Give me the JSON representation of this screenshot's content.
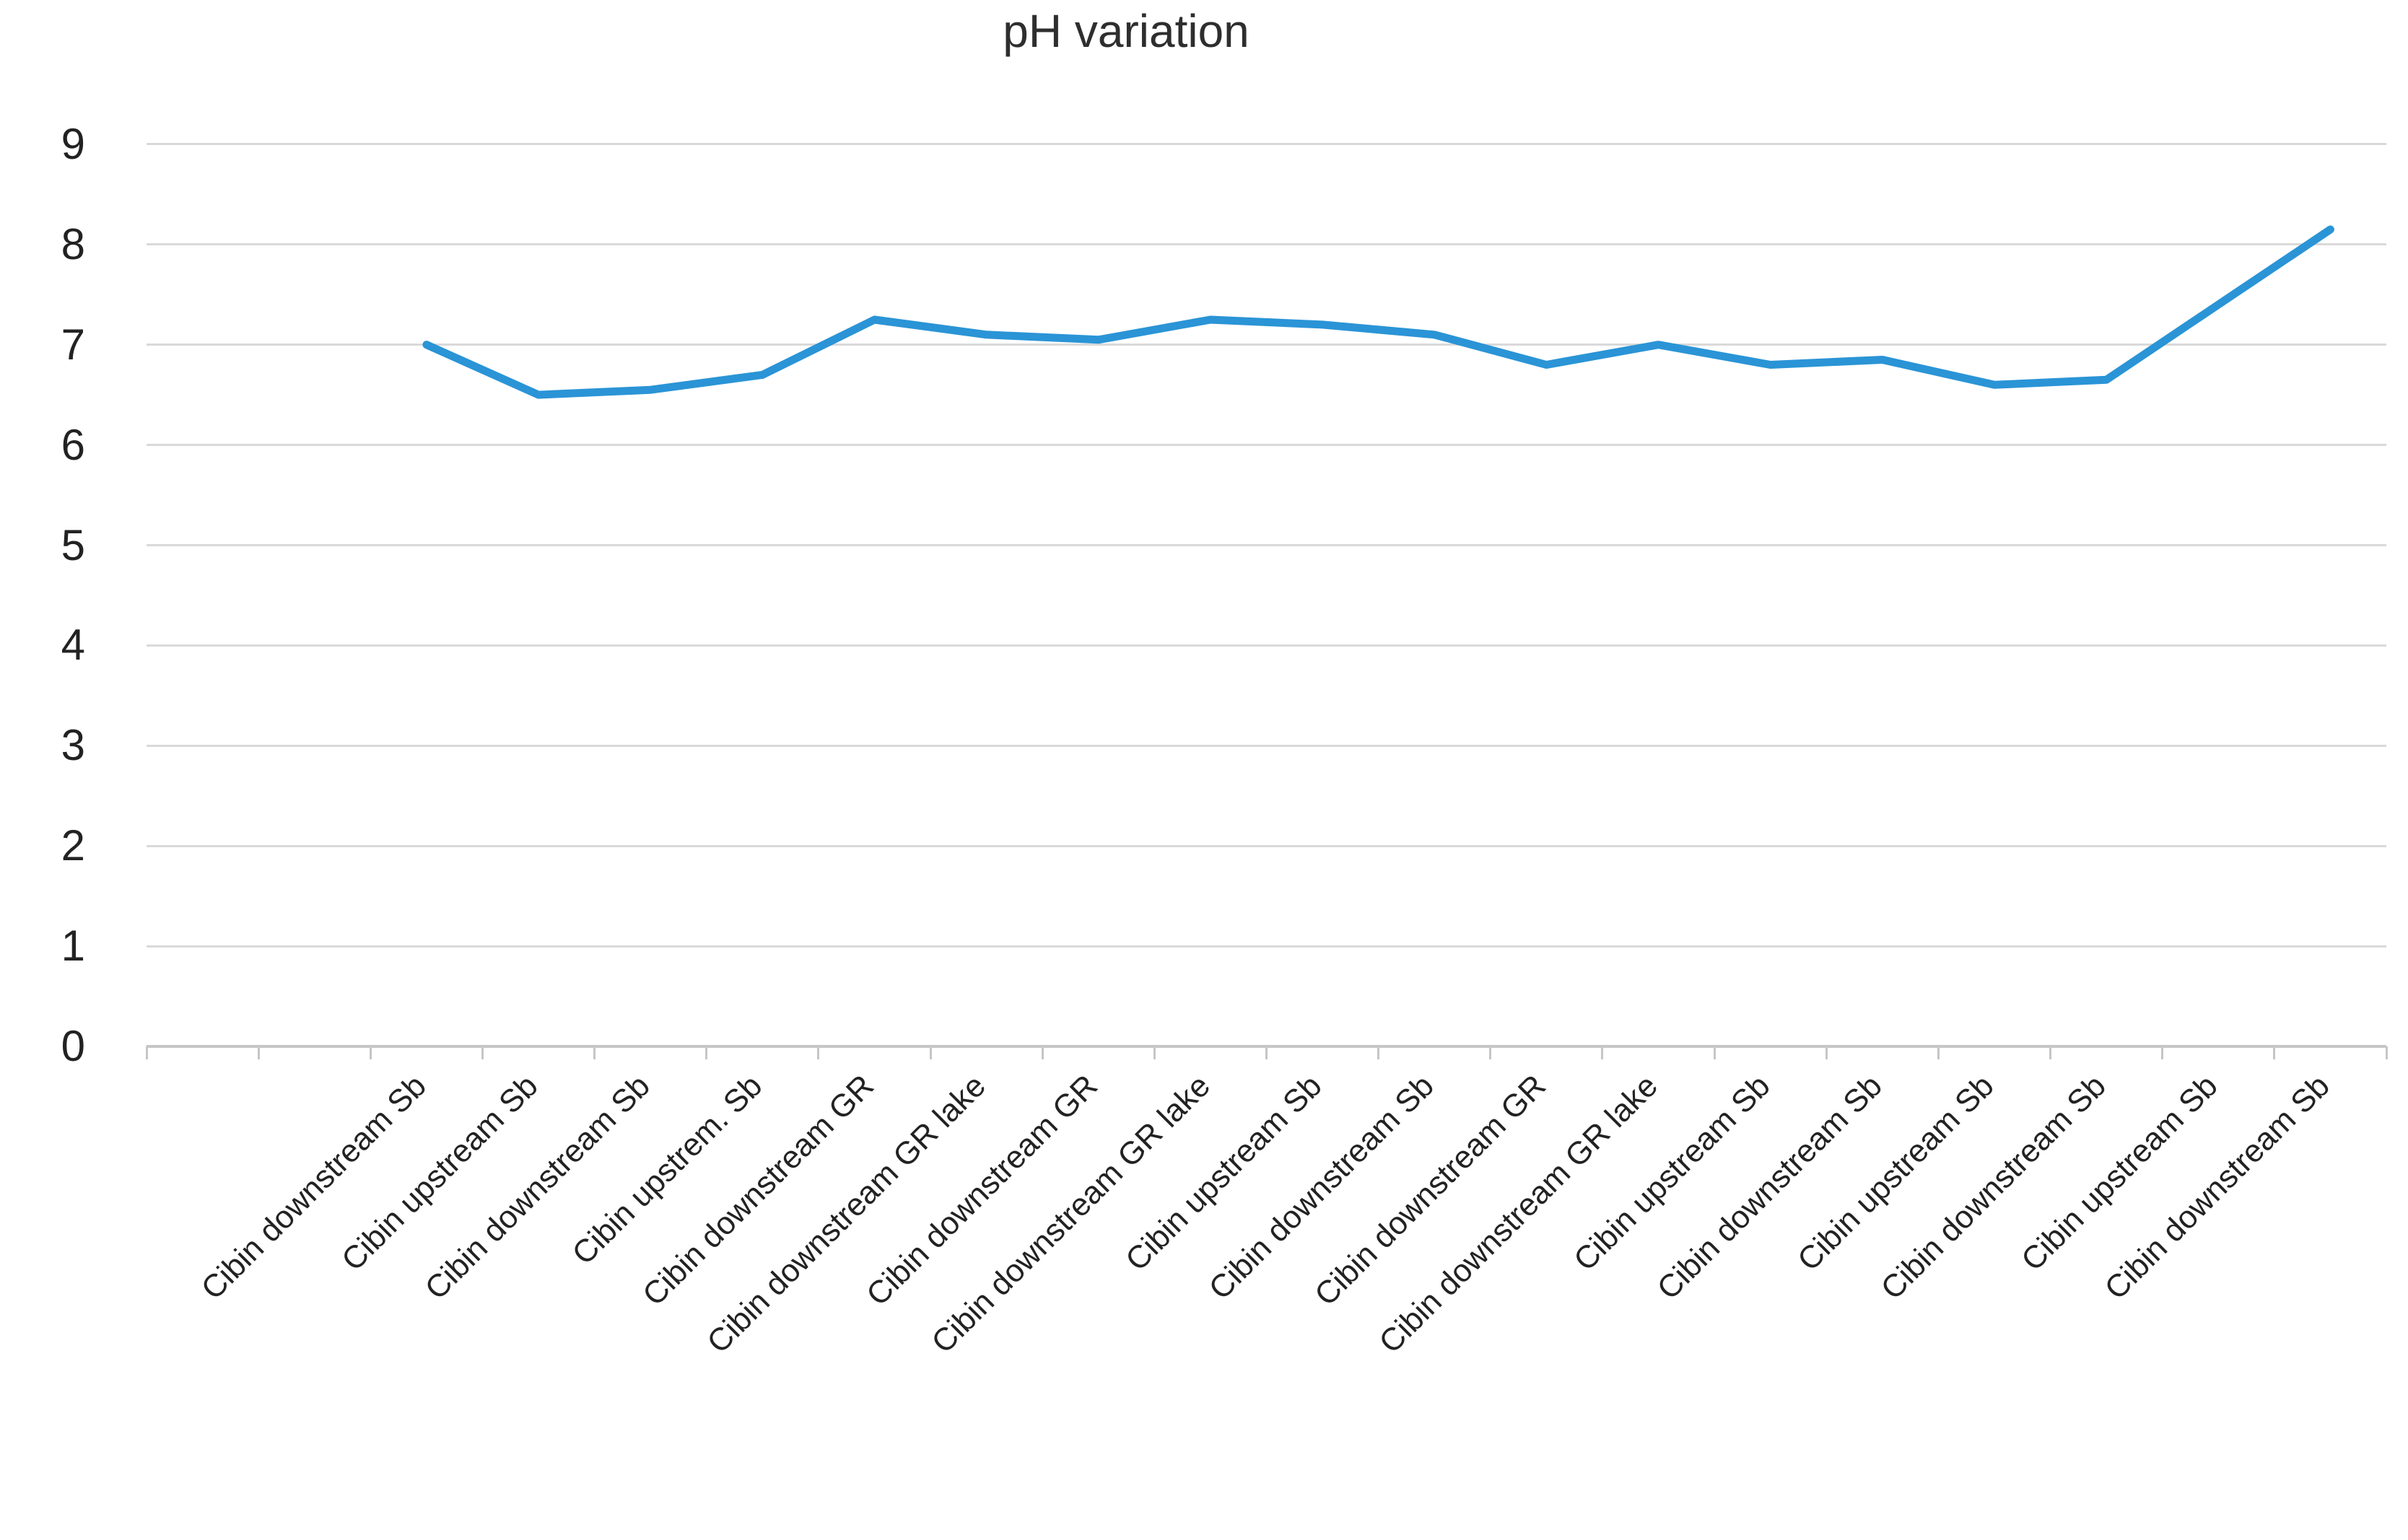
{
  "chart_data": {
    "type": "line",
    "title": "pH variation",
    "xlabel": "",
    "ylabel": "",
    "ylim": [
      0,
      9
    ],
    "y_ticks": [
      "0",
      "1",
      "2",
      "3",
      "4",
      "5",
      "6",
      "7",
      "8",
      "9"
    ],
    "grid": "horizontal",
    "legend": "none",
    "lead_empty_categories": 2,
    "categories": [
      "Cibin downstream Sb",
      "Cibin upstream Sb",
      "Cibin downstream Sb",
      "Cibin upstrem. Sb",
      "Cibin downstream GR",
      "Cibin downstream GR lake",
      "Cibin downstream GR",
      "Cibin downstream GR lake",
      "Cibin upstream Sb",
      "Cibin downstream Sb",
      "Cibin downstream GR",
      "Cibin downstream GR lake",
      "Cibin upstream Sb",
      "Cibin downstream Sb",
      "Cibin upstream Sb",
      "Cibin downstream Sb",
      "Cibin upstream Sb",
      "Cibin downstream Sb"
    ],
    "values": [
      7.0,
      6.5,
      6.55,
      6.7,
      7.25,
      7.1,
      7.05,
      7.25,
      7.2,
      7.1,
      6.8,
      7.0,
      6.8,
      6.85,
      6.6,
      6.65,
      7.4,
      8.15
    ],
    "colors": {
      "line": "#2a94d6",
      "gridline": "#d9d9d9",
      "axis": "#c6c6c6",
      "tick": "#c6c6c6",
      "text": "#222222",
      "title": "#2e2e2e"
    }
  }
}
